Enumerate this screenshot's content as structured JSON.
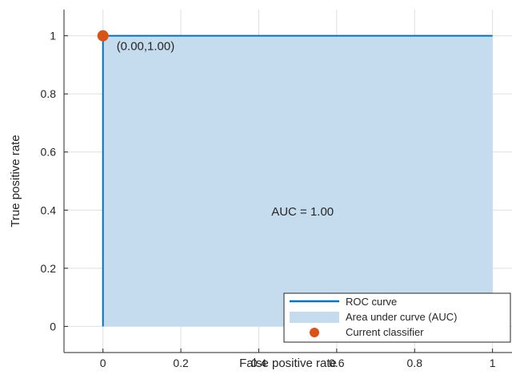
{
  "chart_data": {
    "type": "area",
    "xlabel": "False positive rate",
    "ylabel": "True positive rate",
    "xlim": [
      -0.1,
      1.05
    ],
    "ylim": [
      -0.09,
      1.09
    ],
    "xticks": [
      0,
      0.2,
      0.4,
      0.6,
      0.8,
      1
    ],
    "yticks": [
      0,
      0.2,
      0.4,
      0.6,
      0.8,
      1
    ],
    "xtick_labels": [
      "0",
      "0.2",
      "0.4",
      "0.6",
      "0.8",
      "1"
    ],
    "ytick_labels": [
      "0",
      "0.2",
      "0.4",
      "0.6",
      "0.8",
      "1"
    ],
    "grid": true,
    "series": [
      {
        "name": "ROC curve",
        "kind": "line",
        "color": "#0072bd",
        "x": [
          0,
          0,
          1
        ],
        "y": [
          0,
          1,
          1
        ]
      },
      {
        "name": "Area under curve (AUC)",
        "kind": "area",
        "color": "#c5dcef",
        "x": [
          0,
          0,
          1,
          1
        ],
        "y": [
          0,
          1,
          1,
          0
        ]
      },
      {
        "name": "Current classifier",
        "kind": "marker",
        "color": "#d95319",
        "x": [
          0
        ],
        "y": [
          1
        ]
      }
    ],
    "annotations": [
      {
        "text": "(0.00,1.00)",
        "x": 0,
        "y": 1
      },
      {
        "text": "AUC = 1.00",
        "x": 0.5,
        "y": 0.5
      }
    ],
    "legend": {
      "placement": "bottom-right",
      "items": [
        "ROC curve",
        "Area under curve (AUC)",
        "Current classifier"
      ]
    }
  }
}
